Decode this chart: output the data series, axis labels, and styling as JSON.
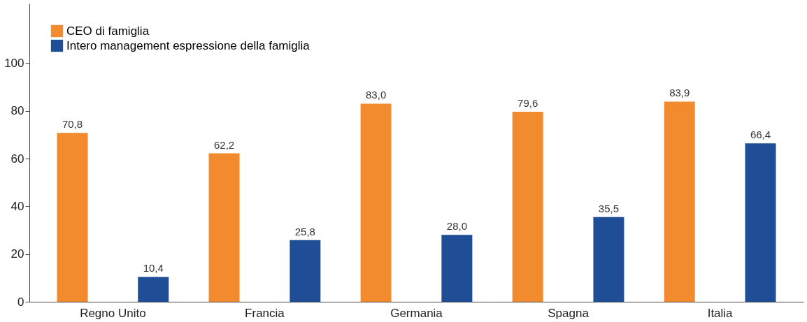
{
  "chart_data": {
    "type": "bar",
    "categories": [
      "Regno Unito",
      "Francia",
      "Germania",
      "Spagna",
      "Italia"
    ],
    "series": [
      {
        "name": "CEO di famiglia",
        "color": "#f28a2e",
        "values": [
          70.8,
          62.2,
          83.0,
          79.6,
          83.9
        ],
        "value_labels": [
          "70,8",
          "62,2",
          "83,0",
          "79,6",
          "83,9"
        ]
      },
      {
        "name": "Intero management espressione della famiglia",
        "color": "#1f4e96",
        "values": [
          10.4,
          25.8,
          28.0,
          35.5,
          66.4
        ],
        "value_labels": [
          "10,4",
          "25,8",
          "28,0",
          "35,5",
          "66,4"
        ]
      }
    ],
    "ylim": [
      0,
      125
    ],
    "yticks": [
      0,
      20,
      40,
      60,
      80,
      100
    ],
    "grid": false,
    "legend": "top left"
  }
}
